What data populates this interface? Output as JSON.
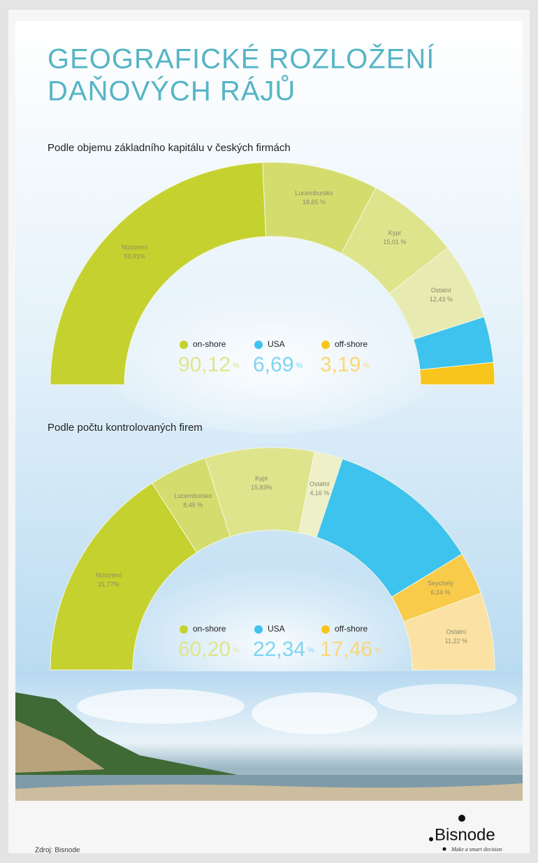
{
  "title_lines": [
    "GEOGRAFICKÉ ROZLOŽENÍ",
    "DAŇOVÝCH RÁJŮ"
  ],
  "chart_data": [
    {
      "type": "half-donut",
      "subtitle": "Podle objemu základního kapitálu v českých firmách",
      "value_unit": "%",
      "groups": [
        {
          "name": "on-shore",
          "color": "#c5d12e",
          "value_color": "#dfe58e",
          "value": 90.12,
          "value_label": "90,12",
          "segments": [
            {
              "name": "Nizozemí",
              "value": 53.91,
              "value_label": "53,91%",
              "color": "#c5d12e"
            },
            {
              "name": "Lucembursko",
              "value": 18.65,
              "value_label": "18,65 %",
              "color": "#d4dc6e"
            },
            {
              "name": "Kypr",
              "value": 15.01,
              "value_label": "15,01 %",
              "color": "#dde48c"
            },
            {
              "name": "Ostatní",
              "value": 12.43,
              "value_label": "12,43 %",
              "color": "#e7ebb2"
            }
          ]
        },
        {
          "name": "USA",
          "color": "#3ec3ef",
          "value_color": "#7dd4f4",
          "value": 6.69,
          "value_label": "6,69"
        },
        {
          "name": "off-shore",
          "color": "#f8c51c",
          "value_color": "#fbd776",
          "value": 3.19,
          "value_label": "3,19"
        }
      ]
    },
    {
      "type": "half-donut",
      "subtitle": "Podle počtu kontrolovaných firem",
      "value_unit": "%",
      "groups": [
        {
          "name": "on-shore",
          "color": "#c5d12e",
          "value_color": "#dfe58e",
          "value": 60.2,
          "value_label": "60,20",
          "segments": [
            {
              "name": "Nizozemí",
              "value": 31.77,
              "value_label": "31,77%",
              "color": "#c5d12e"
            },
            {
              "name": "Lucembursko",
              "value": 8.45,
              "value_label": "8,45 %",
              "color": "#d4dc6e"
            },
            {
              "name": "Kypr",
              "value": 15.83,
              "value_label": "15,83%",
              "color": "#dde48c"
            },
            {
              "name": "Ostatní",
              "value": 4.16,
              "value_label": "4,16 %",
              "color": "#eef0c8"
            }
          ]
        },
        {
          "name": "USA",
          "color": "#3ec3ef",
          "value_color": "#7dd4f4",
          "value": 22.34,
          "value_label": "22,34"
        },
        {
          "name": "off-shore",
          "color": "#f8c51c",
          "value_color": "#fbd776",
          "value": 17.46,
          "value_label": "17,46",
          "segments": [
            {
              "name": "Seychely",
              "value": 6.24,
              "value_label": "6,24 %",
              "color": "#f9cb4a"
            },
            {
              "name": "Ostatní",
              "value": 11.22,
              "value_label": "11,22 %",
              "color": "#fbe1a4"
            }
          ]
        }
      ]
    }
  ],
  "source": "Zdroj: Bisnode",
  "logo": {
    "name": "Bisnode",
    "tagline": "Make a smart decision"
  }
}
